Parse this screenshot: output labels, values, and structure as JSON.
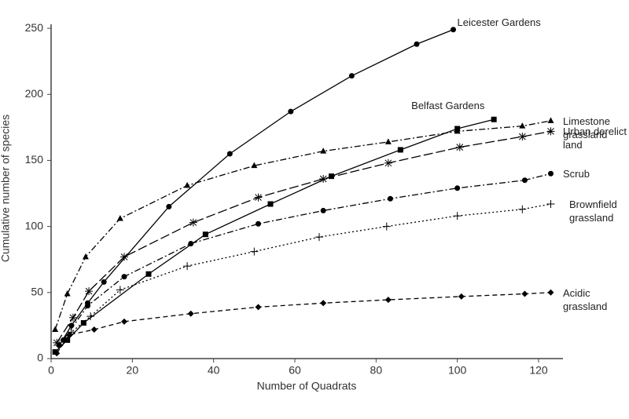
{
  "chart_data": {
    "type": "line",
    "x_label": "Number of Quadrats",
    "y_label": "Cumulative number of species",
    "xlim": [
      0,
      126
    ],
    "ylim": [
      0,
      253
    ],
    "xticks": [
      0,
      20,
      40,
      60,
      80,
      100,
      120
    ],
    "yticks": [
      0,
      50,
      100,
      150,
      200,
      250
    ],
    "series": [
      {
        "name": "Leicester Gardens",
        "color": "#000000",
        "line_style": "solid",
        "marker": "circle",
        "x": [
          2,
          5,
          9,
          13,
          29,
          44,
          59,
          74,
          90,
          99
        ],
        "values": [
          10,
          25,
          42,
          58,
          115,
          155,
          187,
          214,
          238,
          249
        ]
      },
      {
        "name": "Belfast Gardens",
        "color": "#000000",
        "line_style": "solid",
        "marker": "square",
        "x": [
          1,
          4,
          8,
          24,
          38,
          54,
          69,
          86,
          100,
          109
        ],
        "values": [
          5,
          14,
          27,
          64,
          94,
          117,
          138,
          158,
          174,
          181
        ]
      },
      {
        "name": "Limestone grassland",
        "color": "#000000",
        "line_style": "dashdot",
        "marker": "triangle",
        "x": [
          1,
          4,
          8.5,
          17,
          33.5,
          50,
          67,
          83,
          100,
          116,
          123
        ],
        "values": [
          22,
          49,
          77,
          106,
          131,
          146,
          157,
          164,
          172,
          176,
          180
        ]
      },
      {
        "name": "Urban derelict land",
        "color": "#000000",
        "line_style": "longdash",
        "marker": "asterisk",
        "x": [
          1.4,
          5.4,
          9.3,
          18,
          35,
          51,
          67,
          83,
          100.6,
          116,
          123
        ],
        "values": [
          12,
          31,
          51,
          77,
          103,
          122,
          136,
          148,
          160,
          168,
          172
        ]
      },
      {
        "name": "Scrub",
        "color": "#000000",
        "line_style": "dashdot",
        "marker": "circle",
        "x": [
          3,
          9,
          18,
          34.4,
          51,
          67,
          83.5,
          100,
          116.6,
          123
        ],
        "values": [
          14,
          40,
          62,
          87,
          102,
          112,
          121,
          129,
          135,
          140
        ]
      },
      {
        "name": "Brownfield grassland",
        "color": "#000000",
        "line_style": "dotted",
        "marker": "plus",
        "x": [
          2,
          5,
          9.7,
          17,
          33.5,
          50,
          66,
          82.6,
          100,
          116,
          123
        ],
        "values": [
          10,
          20,
          32,
          52,
          70,
          81,
          92,
          100,
          108,
          113,
          117
        ]
      },
      {
        "name": "Acidic grassland",
        "color": "#000000",
        "line_style": "dashed",
        "marker": "diamond",
        "x": [
          1.4,
          4.5,
          10.6,
          18,
          34.4,
          51,
          67,
          83,
          101,
          116.6,
          123
        ],
        "values": [
          4,
          18,
          22,
          28,
          34,
          39,
          42,
          44.5,
          47,
          49,
          50
        ]
      }
    ]
  }
}
